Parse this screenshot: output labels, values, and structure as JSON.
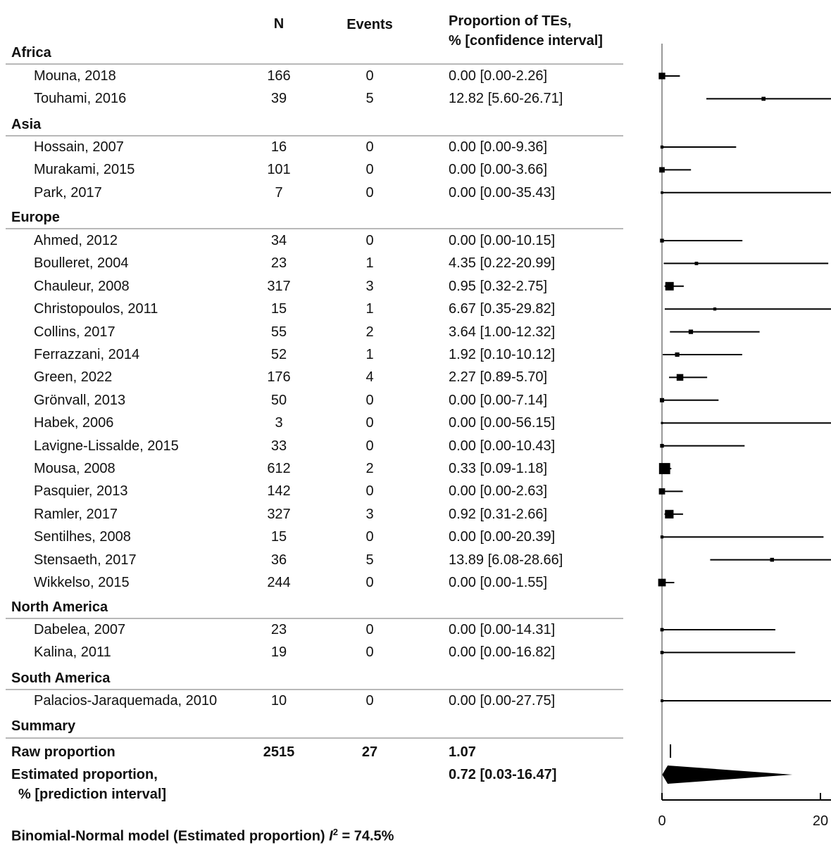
{
  "headers": {
    "n": "N",
    "events": "Events",
    "prop_line1": "Proportion of TEs,",
    "prop_line2": "% [confidence interval]"
  },
  "groups": [
    {
      "name": "Africa",
      "studies": [
        {
          "study": "Mouna, 2018",
          "n": "166",
          "events": "0",
          "ci_text": "0.00 [0.00-2.26]",
          "est": 0.0,
          "lo": 0.0,
          "hi": 2.26
        },
        {
          "study": "Touhami, 2016",
          "n": "39",
          "events": "5",
          "ci_text": "12.82 [5.60-26.71]",
          "est": 12.82,
          "lo": 5.6,
          "hi": 26.71
        }
      ]
    },
    {
      "name": "Asia",
      "studies": [
        {
          "study": "Hossain, 2007",
          "n": "16",
          "events": "0",
          "ci_text": "0.00 [0.00-9.36]",
          "est": 0.0,
          "lo": 0.0,
          "hi": 9.36
        },
        {
          "study": "Murakami, 2015",
          "n": "101",
          "events": "0",
          "ci_text": "0.00 [0.00-3.66]",
          "est": 0.0,
          "lo": 0.0,
          "hi": 3.66
        },
        {
          "study": "Park, 2017",
          "n": "7",
          "events": "0",
          "ci_text": "0.00 [0.00-35.43]",
          "est": 0.0,
          "lo": 0.0,
          "hi": 35.43
        }
      ]
    },
    {
      "name": "Europe",
      "studies": [
        {
          "study": "Ahmed, 2012",
          "n": "34",
          "events": "0",
          "ci_text": "0.00 [0.00-10.15]",
          "est": 0.0,
          "lo": 0.0,
          "hi": 10.15
        },
        {
          "study": "Boulleret, 2004",
          "n": "23",
          "events": "1",
          "ci_text": "4.35 [0.22-20.99]",
          "est": 4.35,
          "lo": 0.22,
          "hi": 20.99
        },
        {
          "study": "Chauleur, 2008",
          "n": "317",
          "events": "3",
          "ci_text": "0.95 [0.32-2.75]",
          "est": 0.95,
          "lo": 0.32,
          "hi": 2.75
        },
        {
          "study": "Christopoulos, 2011",
          "n": "15",
          "events": "1",
          "ci_text": "6.67 [0.35-29.82]",
          "est": 6.67,
          "lo": 0.35,
          "hi": 29.82
        },
        {
          "study": "Collins, 2017",
          "n": "55",
          "events": "2",
          "ci_text": "3.64 [1.00-12.32]",
          "est": 3.64,
          "lo": 1.0,
          "hi": 12.32
        },
        {
          "study": "Ferrazzani, 2014",
          "n": "52",
          "events": "1",
          "ci_text": "1.92 [0.10-10.12]",
          "est": 1.92,
          "lo": 0.1,
          "hi": 10.12
        },
        {
          "study": "Green, 2022",
          "n": "176",
          "events": "4",
          "ci_text": "2.27 [0.89-5.70]",
          "est": 2.27,
          "lo": 0.89,
          "hi": 5.7
        },
        {
          "study": "Grönvall, 2013",
          "n": "50",
          "events": "0",
          "ci_text": "0.00 [0.00-7.14]",
          "est": 0.0,
          "lo": 0.0,
          "hi": 7.14
        },
        {
          "study": "Habek, 2006",
          "n": "3",
          "events": "0",
          "ci_text": "0.00 [0.00-56.15]",
          "est": 0.0,
          "lo": 0.0,
          "hi": 56.15
        },
        {
          "study": "Lavigne-Lissalde, 2015",
          "n": "33",
          "events": "0",
          "ci_text": "0.00 [0.00-10.43]",
          "est": 0.0,
          "lo": 0.0,
          "hi": 10.43
        },
        {
          "study": "Mousa, 2008",
          "n": "612",
          "events": "2",
          "ci_text": "0.33 [0.09-1.18]",
          "est": 0.33,
          "lo": 0.09,
          "hi": 1.18
        },
        {
          "study": "Pasquier, 2013",
          "n": "142",
          "events": "0",
          "ci_text": "0.00 [0.00-2.63]",
          "est": 0.0,
          "lo": 0.0,
          "hi": 2.63
        },
        {
          "study": "Ramler, 2017",
          "n": "327",
          "events": "3",
          "ci_text": "0.92 [0.31-2.66]",
          "est": 0.92,
          "lo": 0.31,
          "hi": 2.66
        },
        {
          "study": "Sentilhes, 2008",
          "n": "15",
          "events": "0",
          "ci_text": "0.00 [0.00-20.39]",
          "est": 0.0,
          "lo": 0.0,
          "hi": 20.39
        },
        {
          "study": "Stensaeth, 2017",
          "n": "36",
          "events": "5",
          "ci_text": "13.89 [6.08-28.66]",
          "est": 13.89,
          "lo": 6.08,
          "hi": 28.66
        },
        {
          "study": "Wikkelso, 2015",
          "n": "244",
          "events": "0",
          "ci_text": "0.00 [0.00-1.55]",
          "est": 0.0,
          "lo": 0.0,
          "hi": 1.55
        }
      ]
    },
    {
      "name": "North America",
      "studies": [
        {
          "study": "Dabelea, 2007",
          "n": "23",
          "events": "0",
          "ci_text": "0.00 [0.00-14.31]",
          "est": 0.0,
          "lo": 0.0,
          "hi": 14.31
        },
        {
          "study": "Kalina, 2011",
          "n": "19",
          "events": "0",
          "ci_text": "0.00 [0.00-16.82]",
          "est": 0.0,
          "lo": 0.0,
          "hi": 16.82
        }
      ]
    },
    {
      "name": "South America",
      "studies": [
        {
          "study": "Palacios-Jaraquemada, 2010",
          "n": "10",
          "events": "0",
          "ci_text": "0.00 [0.00-27.75]",
          "est": 0.0,
          "lo": 0.0,
          "hi": 27.75
        }
      ]
    }
  ],
  "summary": {
    "label": "Summary",
    "raw_label": "Raw proportion",
    "raw_n": "2515",
    "raw_events": "27",
    "raw_value_text": "1.07",
    "raw_value": 1.07,
    "est_label_line1": "Estimated proportion,",
    "est_label_line2": "% [prediction interval]",
    "est_text": "0.72 [0.03-16.47]",
    "est": 0.72,
    "est_lo": 0.03,
    "est_hi": 16.47
  },
  "footer": {
    "prefix": "Binomial-Normal model (Estimated proportion) ",
    "i_symbol": "I",
    "sup": "2",
    "suffix": " = 74.5%"
  },
  "chart_data": {
    "type": "forest",
    "xlim": [
      0,
      40
    ],
    "x_ticks": [
      "0",
      "20",
      "40"
    ],
    "vertical_reference_line": 0,
    "colors": {
      "marks": "#000000",
      "axis": "#999999"
    }
  }
}
